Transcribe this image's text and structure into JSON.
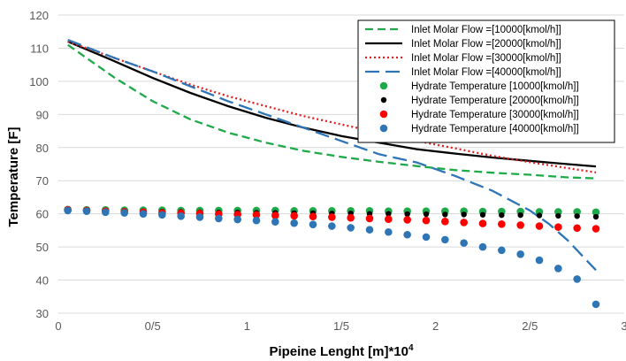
{
  "chart_data": {
    "type": "line",
    "xlabel": "Pipeine Lenght [m]*10",
    "xlabel_sup": "4",
    "ylabel": "Temperature [F]",
    "xlim": [
      0,
      3
    ],
    "ylim": [
      30,
      120
    ],
    "x_tick_values": [
      0,
      0.5,
      1,
      1.5,
      2,
      2.5,
      3
    ],
    "x_tick_labels": [
      "0",
      "0/5",
      "1",
      "1/5",
      "2",
      "2/5",
      "3"
    ],
    "y_tick_values": [
      30,
      40,
      50,
      60,
      70,
      80,
      90,
      100,
      110,
      120
    ],
    "y_tick_labels": [
      "30",
      "40",
      "50",
      "60",
      "70",
      "80",
      "90",
      "100",
      "110",
      "120"
    ],
    "grid": "horizontal",
    "legend_position": "top-right",
    "line_series": [
      {
        "name": "Inlet Molar Flow =[10000[kmol/h]]",
        "color": "#1faa4a",
        "dash": "dashed",
        "x": [
          0.05,
          0.3,
          0.5,
          0.7,
          0.9,
          1.1,
          1.3,
          1.5,
          1.7,
          1.9,
          2.1,
          2.3,
          2.5,
          2.7,
          2.85
        ],
        "y": [
          111,
          101,
          94,
          88.5,
          84.5,
          81.5,
          79,
          77.2,
          75.7,
          74.4,
          73.2,
          72.4,
          71.8,
          71.0,
          70.7
        ]
      },
      {
        "name": "Inlet Molar Flow =[20000[kmol/h]]",
        "color": "#000000",
        "dash": "solid",
        "x": [
          0.05,
          0.3,
          0.5,
          0.7,
          0.9,
          1.1,
          1.3,
          1.5,
          1.7,
          1.9,
          2.1,
          2.3,
          2.5,
          2.7,
          2.85
        ],
        "y": [
          112,
          106,
          101,
          96.5,
          92.5,
          89,
          86,
          83.5,
          81.5,
          79.5,
          78.2,
          77.0,
          76.0,
          75.0,
          74.3
        ]
      },
      {
        "name": "Inlet Molar Flow =[30000[kmol/h]]",
        "color": "#e02020",
        "dash": "dotted",
        "x": [
          0.05,
          0.3,
          0.5,
          0.7,
          0.9,
          1.1,
          1.3,
          1.5,
          1.7,
          1.9,
          2.1,
          2.3,
          2.5,
          2.7,
          2.85
        ],
        "y": [
          112,
          107,
          103,
          99,
          95.5,
          92.5,
          89.5,
          87,
          84.5,
          82,
          79.8,
          77.5,
          75.6,
          73.8,
          72.5
        ]
      },
      {
        "name": "Inlet Molar Flow =[40000[kmol/h]]",
        "color": "#2e75b6",
        "dash": "longdash",
        "x": [
          0.05,
          0.3,
          0.5,
          0.7,
          0.9,
          1.1,
          1.3,
          1.5,
          1.7,
          1.9,
          2.1,
          2.3,
          2.5,
          2.6,
          2.7,
          2.8,
          2.85
        ],
        "y": [
          112.5,
          107,
          103,
          98.5,
          94,
          90,
          86,
          82,
          78,
          75.5,
          71.5,
          67,
          61,
          57,
          52,
          46,
          43
        ]
      }
    ],
    "scatter_series": [
      {
        "name": "Hydrate Temperature [10000[kmol/h]]",
        "color": "#1faa4a",
        "x": [
          0.05,
          0.15,
          0.25,
          0.35,
          0.45,
          0.55,
          0.65,
          0.75,
          0.85,
          0.95,
          1.05,
          1.15,
          1.25,
          1.35,
          1.45,
          1.55,
          1.65,
          1.75,
          1.85,
          1.95,
          2.05,
          2.15,
          2.25,
          2.35,
          2.45,
          2.55,
          2.65,
          2.75,
          2.85
        ],
        "y": [
          61.3,
          61.2,
          61.2,
          61.1,
          61.1,
          61.1,
          61.0,
          61.0,
          61.0,
          61.0,
          61.0,
          61.0,
          60.9,
          60.9,
          60.9,
          60.9,
          60.9,
          60.8,
          60.8,
          60.8,
          60.8,
          60.8,
          60.7,
          60.7,
          60.7,
          60.6,
          60.6,
          60.6,
          60.5
        ]
      },
      {
        "name": "Hydrate Temperature [20000[kmol/h]]",
        "color": "#000000",
        "x": [
          0.05,
          0.15,
          0.25,
          0.35,
          0.45,
          0.55,
          0.65,
          0.75,
          0.85,
          0.95,
          1.05,
          1.15,
          1.25,
          1.35,
          1.45,
          1.55,
          1.65,
          1.75,
          1.85,
          1.95,
          2.05,
          2.15,
          2.25,
          2.35,
          2.45,
          2.55,
          2.65,
          2.75,
          2.85
        ],
        "y": [
          61.2,
          61.1,
          61.0,
          60.9,
          60.8,
          60.7,
          60.6,
          60.5,
          60.4,
          60.4,
          60.3,
          60.3,
          60.2,
          60.2,
          60.1,
          60.1,
          60.0,
          60.0,
          59.9,
          59.9,
          59.8,
          59.8,
          59.7,
          59.6,
          59.6,
          59.5,
          59.4,
          59.3,
          59.1
        ]
      },
      {
        "name": "Hydrate Temperature [30000[kmol/h]]",
        "color": "#ff0000",
        "x": [
          0.05,
          0.15,
          0.25,
          0.35,
          0.45,
          0.55,
          0.65,
          0.75,
          0.85,
          0.95,
          1.05,
          1.15,
          1.25,
          1.35,
          1.45,
          1.55,
          1.65,
          1.75,
          1.85,
          1.95,
          2.05,
          2.15,
          2.25,
          2.35,
          2.45,
          2.55,
          2.65,
          2.75,
          2.85
        ],
        "y": [
          61.2,
          61.0,
          60.8,
          60.6,
          60.5,
          60.3,
          60.2,
          60.1,
          59.9,
          59.8,
          59.7,
          59.5,
          59.4,
          59.2,
          59.0,
          58.8,
          58.6,
          58.4,
          58.2,
          58.0,
          57.7,
          57.4,
          57.1,
          56.9,
          56.6,
          56.3,
          56.0,
          55.7,
          55.5
        ]
      },
      {
        "name": "Hydrate Temperature [40000[kmol/h]]",
        "color": "#2e75b6",
        "x": [
          0.05,
          0.15,
          0.25,
          0.35,
          0.45,
          0.55,
          0.65,
          0.75,
          0.85,
          0.95,
          1.05,
          1.15,
          1.25,
          1.35,
          1.45,
          1.55,
          1.65,
          1.75,
          1.85,
          1.95,
          2.05,
          2.15,
          2.25,
          2.35,
          2.45,
          2.55,
          2.65,
          2.75,
          2.85
        ],
        "y": [
          61.0,
          60.8,
          60.5,
          60.3,
          60.0,
          59.7,
          59.3,
          59.0,
          58.6,
          58.3,
          58.0,
          57.6,
          57.2,
          56.8,
          56.3,
          55.8,
          55.2,
          54.5,
          53.7,
          53.0,
          52.2,
          51.2,
          50.0,
          49.0,
          47.8,
          46.0,
          43.5,
          40.3,
          32.7
        ]
      }
    ]
  }
}
